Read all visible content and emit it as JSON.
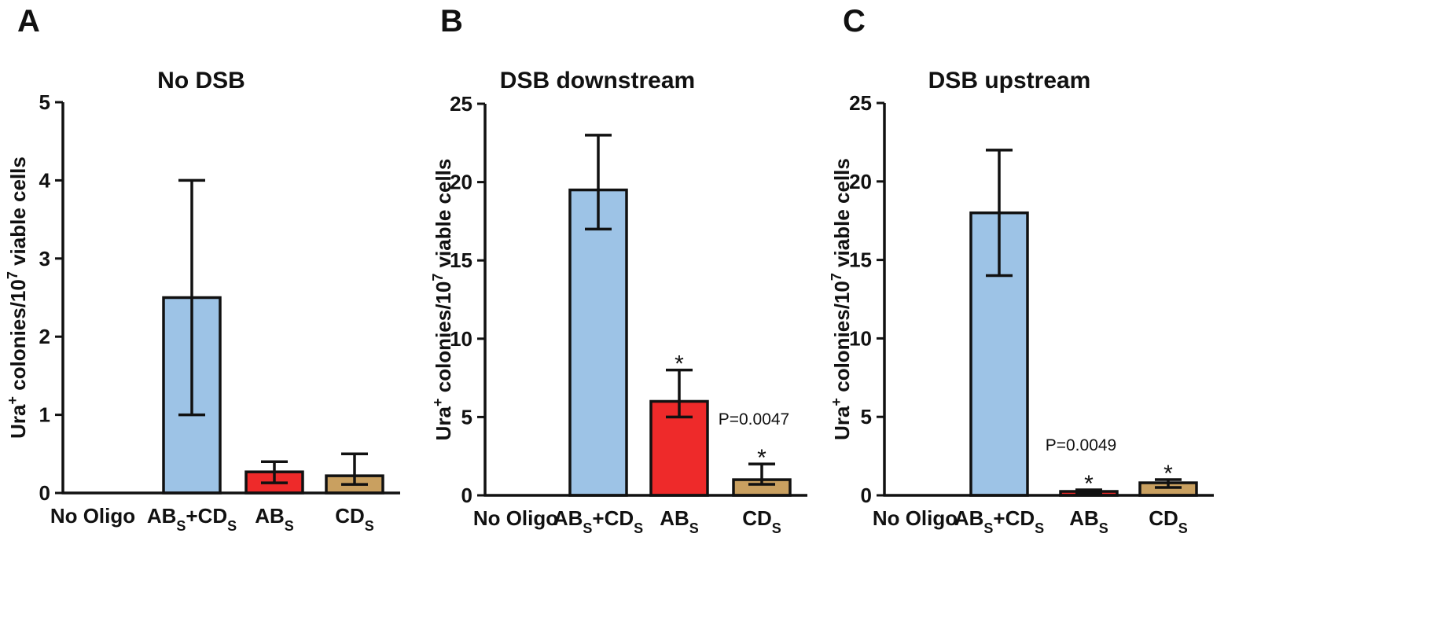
{
  "chart_data": [
    {
      "type": "bar",
      "panel": "A",
      "title": "No DSB",
      "ylabel": "Ura+ colonies/10^7 viable cells",
      "ylabel_parts": {
        "pre": "Ura",
        "sup1": "+",
        "mid": " colonies/10",
        "sup2": "7",
        "post": " viable cells"
      },
      "categories": [
        {
          "base": "No Oligo",
          "sub": "",
          "base2": "",
          "sub2": ""
        },
        {
          "base": "AB",
          "sub": "S",
          "base2": "+CD",
          "sub2": "S"
        },
        {
          "base": "AB",
          "sub": "S",
          "base2": "",
          "sub2": ""
        },
        {
          "base": "CD",
          "sub": "S",
          "base2": "",
          "sub2": ""
        }
      ],
      "values": [
        0,
        2.5,
        0.27,
        0.22
      ],
      "error_low": [
        0,
        1.0,
        0.13,
        0.11
      ],
      "error_high": [
        0,
        4.0,
        0.4,
        0.5
      ],
      "colors": [
        "#ffffff",
        "#9dc3e6",
        "#ee2a2a",
        "#c9a060"
      ],
      "ylim": [
        0,
        5
      ],
      "yticks": [
        "0",
        "1",
        "2",
        "3",
        "4",
        "5"
      ],
      "annotations": []
    },
    {
      "type": "bar",
      "panel": "B",
      "title": "DSB downstream",
      "ylabel": "Ura+ colonies/10^7 viable cells",
      "ylabel_parts": {
        "pre": "Ura",
        "sup1": "+",
        "mid": " colonies/10",
        "sup2": "7",
        "post": " viable cells"
      },
      "categories": [
        {
          "base": "No Oligo",
          "sub": "",
          "base2": "",
          "sub2": ""
        },
        {
          "base": "AB",
          "sub": "S",
          "base2": "+CD",
          "sub2": "S"
        },
        {
          "base": "AB",
          "sub": "S",
          "base2": "",
          "sub2": ""
        },
        {
          "base": "CD",
          "sub": "S",
          "base2": "",
          "sub2": ""
        }
      ],
      "values": [
        0,
        19.5,
        6.0,
        1.0
      ],
      "error_low": [
        0,
        17.0,
        5.0,
        0.7
      ],
      "error_high": [
        0,
        23.0,
        8.0,
        2.0
      ],
      "colors": [
        "#ffffff",
        "#9dc3e6",
        "#ee2a2a",
        "#c9a060"
      ],
      "ylim": [
        0,
        25
      ],
      "yticks": [
        "0",
        "5",
        "10",
        "15",
        "20",
        "25"
      ],
      "annotations": [
        {
          "text": "*",
          "bar": 2,
          "kind": "star"
        },
        {
          "text": "*",
          "bar": 3,
          "kind": "star"
        },
        {
          "text": "P=0.0047",
          "bar": 3,
          "kind": "pvalue"
        }
      ]
    },
    {
      "type": "bar",
      "panel": "C",
      "title": "DSB upstream",
      "ylabel": "Ura+ colonies/10^7 viable cells",
      "ylabel_parts": {
        "pre": "Ura",
        "sup1": "+",
        "mid": " colonies/10",
        "sup2": "7",
        "post": " viable cells"
      },
      "categories": [
        {
          "base": "No Oligo",
          "sub": "",
          "base2": "",
          "sub2": ""
        },
        {
          "base": "AB",
          "sub": "S",
          "base2": "+CD",
          "sub2": "S"
        },
        {
          "base": "AB",
          "sub": "S",
          "base2": "",
          "sub2": ""
        },
        {
          "base": "CD",
          "sub": "S",
          "base2": "",
          "sub2": ""
        }
      ],
      "values": [
        0,
        18.0,
        0.25,
        0.8
      ],
      "error_low": [
        0,
        14.0,
        0.15,
        0.5
      ],
      "error_high": [
        0,
        22.0,
        0.35,
        1.0
      ],
      "colors": [
        "#ffffff",
        "#9dc3e6",
        "#ee2a2a",
        "#c9a060"
      ],
      "ylim": [
        0,
        25
      ],
      "yticks": [
        "0",
        "5",
        "10",
        "15",
        "20",
        "25"
      ],
      "annotations": [
        {
          "text": "*",
          "bar": 2,
          "kind": "star"
        },
        {
          "text": "*",
          "bar": 3,
          "kind": "star"
        },
        {
          "text": "P=0.0049",
          "bar": 2,
          "kind": "pvalue"
        }
      ]
    }
  ]
}
